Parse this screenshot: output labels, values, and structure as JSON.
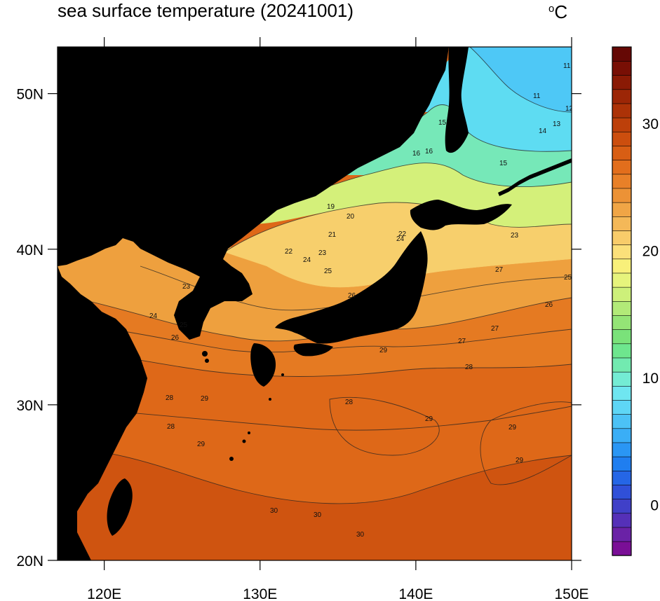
{
  "title": "sea surface temperature (20241001)",
  "unit": "°C",
  "map": {
    "lon_range": [
      117,
      150
    ],
    "lat_range": [
      20,
      53
    ],
    "x_ticks": [
      "120E",
      "130E",
      "140E",
      "150E"
    ],
    "y_ticks": [
      "20N",
      "30N",
      "40N",
      "50N"
    ],
    "land_color": "#000000"
  },
  "colorbar": {
    "min": -4,
    "max": 36,
    "tick_labels": [
      "0",
      "10",
      "20",
      "30"
    ],
    "colors": [
      "#7a0f96",
      "#6a22a6",
      "#5530b8",
      "#4040c8",
      "#3050d8",
      "#2566e6",
      "#1f7ef0",
      "#2a96f4",
      "#3aaef6",
      "#4cc2f6",
      "#5ed6f6",
      "#6fe6f0",
      "#74ecd4",
      "#72eab0",
      "#6ee68e",
      "#7ae27a",
      "#94e476",
      "#b2ea78",
      "#cdf07a",
      "#e6f47c",
      "#f8f07a",
      "#fbe07a",
      "#f8cc6a",
      "#f4b858",
      "#f0a546",
      "#ec9236",
      "#e88028",
      "#e26e1c",
      "#d85e14",
      "#cc4e0e",
      "#bd400a",
      "#ac3207",
      "#9c2606",
      "#8a1a05",
      "#780f05",
      "#650805"
    ]
  },
  "contour_labels": [
    "11",
    "11",
    "12",
    "13",
    "14",
    "15",
    "15",
    "16",
    "16",
    "19",
    "20",
    "21",
    "22",
    "22",
    "23",
    "23",
    "23",
    "24",
    "24",
    "24",
    "25",
    "25",
    "25",
    "26",
    "26",
    "26",
    "27",
    "27",
    "27",
    "28",
    "28",
    "28",
    "28",
    "29",
    "29",
    "29",
    "29",
    "29",
    "29",
    "30",
    "30",
    "30"
  ]
}
